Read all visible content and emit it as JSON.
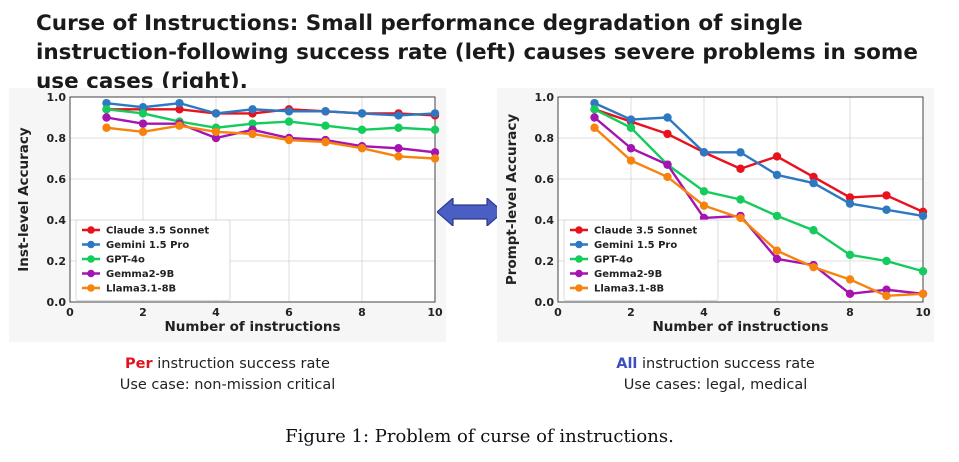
{
  "headline": "Curse of Instructions: Small performance degradation of single instruction-following success rate (left) causes severe problems in some use cases (right).",
  "colors": {
    "claude": "#e8111c",
    "gemini": "#2d78c0",
    "gpt": "#14cc5c",
    "gemma": "#a414b0",
    "llama": "#f7830f",
    "red_emphasis": "#e0141e",
    "blue_emphasis": "#3a4fc0",
    "arrow_fill": "#4a5ec4"
  },
  "chart_data": [
    {
      "type": "line",
      "x": [
        1,
        2,
        3,
        4,
        5,
        6,
        7,
        8,
        9,
        10
      ],
      "xlabel": "Number of instructions",
      "ylabel": "Inst-level Accuracy",
      "xlim": [
        0,
        10
      ],
      "ylim": [
        0.0,
        1.0
      ],
      "xticks": [
        "0",
        "2",
        "4",
        "6",
        "8",
        "10"
      ],
      "yticks": [
        "0.0",
        "0.2",
        "0.4",
        "0.6",
        "0.8",
        "1.0"
      ],
      "grid": true,
      "legend_position": "lower-left",
      "series": [
        {
          "name": "Claude 3.5 Sonnet",
          "color_key": "claude",
          "values": [
            0.94,
            0.94,
            0.94,
            0.92,
            0.92,
            0.94,
            0.93,
            0.92,
            0.92,
            0.91
          ]
        },
        {
          "name": "Gemini 1.5 Pro",
          "color_key": "gemini",
          "values": [
            0.97,
            0.95,
            0.97,
            0.92,
            0.94,
            0.93,
            0.93,
            0.92,
            0.91,
            0.92
          ]
        },
        {
          "name": "GPT-4o",
          "color_key": "gpt",
          "values": [
            0.94,
            0.92,
            0.88,
            0.85,
            0.87,
            0.88,
            0.86,
            0.84,
            0.85,
            0.84
          ]
        },
        {
          "name": "Gemma2-9B",
          "color_key": "gemma",
          "values": [
            0.9,
            0.87,
            0.87,
            0.8,
            0.84,
            0.8,
            0.79,
            0.76,
            0.75,
            0.73
          ]
        },
        {
          "name": "Llama3.1-8B",
          "color_key": "llama",
          "values": [
            0.85,
            0.83,
            0.86,
            0.83,
            0.82,
            0.79,
            0.78,
            0.75,
            0.71,
            0.7
          ]
        }
      ]
    },
    {
      "type": "line",
      "x": [
        1,
        2,
        3,
        4,
        5,
        6,
        7,
        8,
        9,
        10
      ],
      "xlabel": "Number of instructions",
      "ylabel": "Prompt-level Accuracy",
      "xlim": [
        0,
        10
      ],
      "ylim": [
        0.0,
        1.0
      ],
      "xticks": [
        "0",
        "2",
        "4",
        "6",
        "8",
        "10"
      ],
      "yticks": [
        "0.0",
        "0.2",
        "0.4",
        "0.6",
        "0.8",
        "1.0"
      ],
      "grid": true,
      "legend_position": "lower-left",
      "series": [
        {
          "name": "Claude 3.5 Sonnet",
          "color_key": "claude",
          "values": [
            0.94,
            0.88,
            0.82,
            0.73,
            0.65,
            0.71,
            0.61,
            0.51,
            0.52,
            0.44
          ]
        },
        {
          "name": "Gemini 1.5 Pro",
          "color_key": "gemini",
          "values": [
            0.97,
            0.89,
            0.9,
            0.73,
            0.73,
            0.62,
            0.58,
            0.48,
            0.45,
            0.42
          ]
        },
        {
          "name": "GPT-4o",
          "color_key": "gpt",
          "values": [
            0.94,
            0.85,
            0.67,
            0.54,
            0.5,
            0.42,
            0.35,
            0.23,
            0.2,
            0.15
          ]
        },
        {
          "name": "Gemma2-9B",
          "color_key": "gemma",
          "values": [
            0.9,
            0.75,
            0.67,
            0.41,
            0.42,
            0.21,
            0.18,
            0.04,
            0.06,
            0.04
          ]
        },
        {
          "name": "Llama3.1-8B",
          "color_key": "llama",
          "values": [
            0.85,
            0.69,
            0.61,
            0.47,
            0.41,
            0.25,
            0.17,
            0.11,
            0.03,
            0.04
          ]
        }
      ]
    }
  ],
  "captions": {
    "left": {
      "emphasis": "Per",
      "rest": " instruction success rate",
      "use_case": "Use case: non-mission critical"
    },
    "right": {
      "emphasis": "All",
      "rest": " instruction success rate",
      "use_case": "Use cases: legal, medical"
    }
  },
  "figure_caption": "Figure 1: Problem of curse of instructions."
}
